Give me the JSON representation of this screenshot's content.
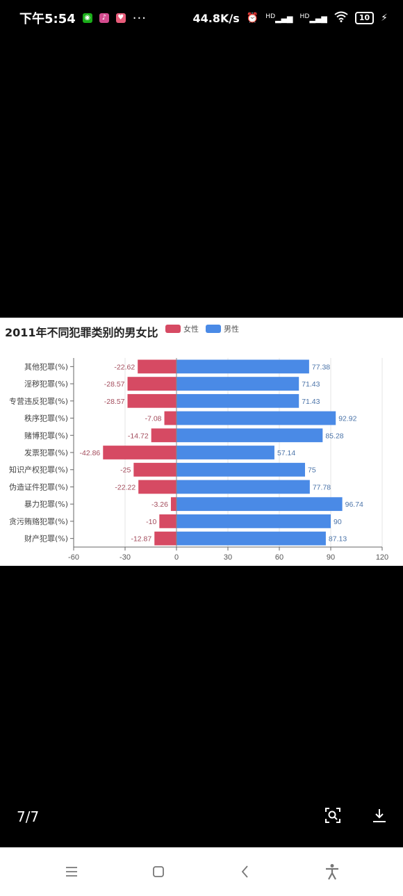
{
  "status_bar": {
    "time": "下午5:54",
    "dots": "···",
    "net_speed": "44.8K/s",
    "hd1": "HD",
    "hd2": "HD",
    "battery": "10"
  },
  "chart": {
    "title": "2011年不同犯罪类别的男女比",
    "legend": [
      {
        "label": "女性",
        "color": "#d64a63"
      },
      {
        "label": "男性",
        "color": "#4a8ae6"
      }
    ]
  },
  "chart_data": {
    "type": "bar",
    "orientation": "horizontal",
    "title": "2011年不同犯罪类别的男女比",
    "categories": [
      "其他犯罪(%)",
      "淫秽犯罪(%)",
      "专营违反犯罪(%)",
      "秩序犯罪(%)",
      "赌博犯罪(%)",
      "发票犯罪(%)",
      "知识产权犯罪(%)",
      "伪造证件犯罪(%)",
      "暴力犯罪(%)",
      "贪污贿赂犯罪(%)",
      "财产犯罪(%)"
    ],
    "series": [
      {
        "name": "女性",
        "color": "#d64a63",
        "values": [
          -22.62,
          -28.57,
          -28.57,
          -7.08,
          -14.72,
          -42.86,
          -25,
          -22.22,
          -3.26,
          -10,
          -12.87
        ]
      },
      {
        "name": "男性",
        "color": "#4a8ae6",
        "values": [
          77.38,
          71.43,
          71.43,
          92.92,
          85.28,
          57.14,
          75,
          77.78,
          96.74,
          90,
          87.13
        ]
      }
    ],
    "xlim": [
      -60,
      120
    ],
    "xticks": [
      "-60",
      "-30",
      "0",
      "30",
      "60",
      "90",
      "120"
    ],
    "grid": true,
    "legend_position": "top"
  },
  "viewer": {
    "page_counter": "7/7"
  }
}
